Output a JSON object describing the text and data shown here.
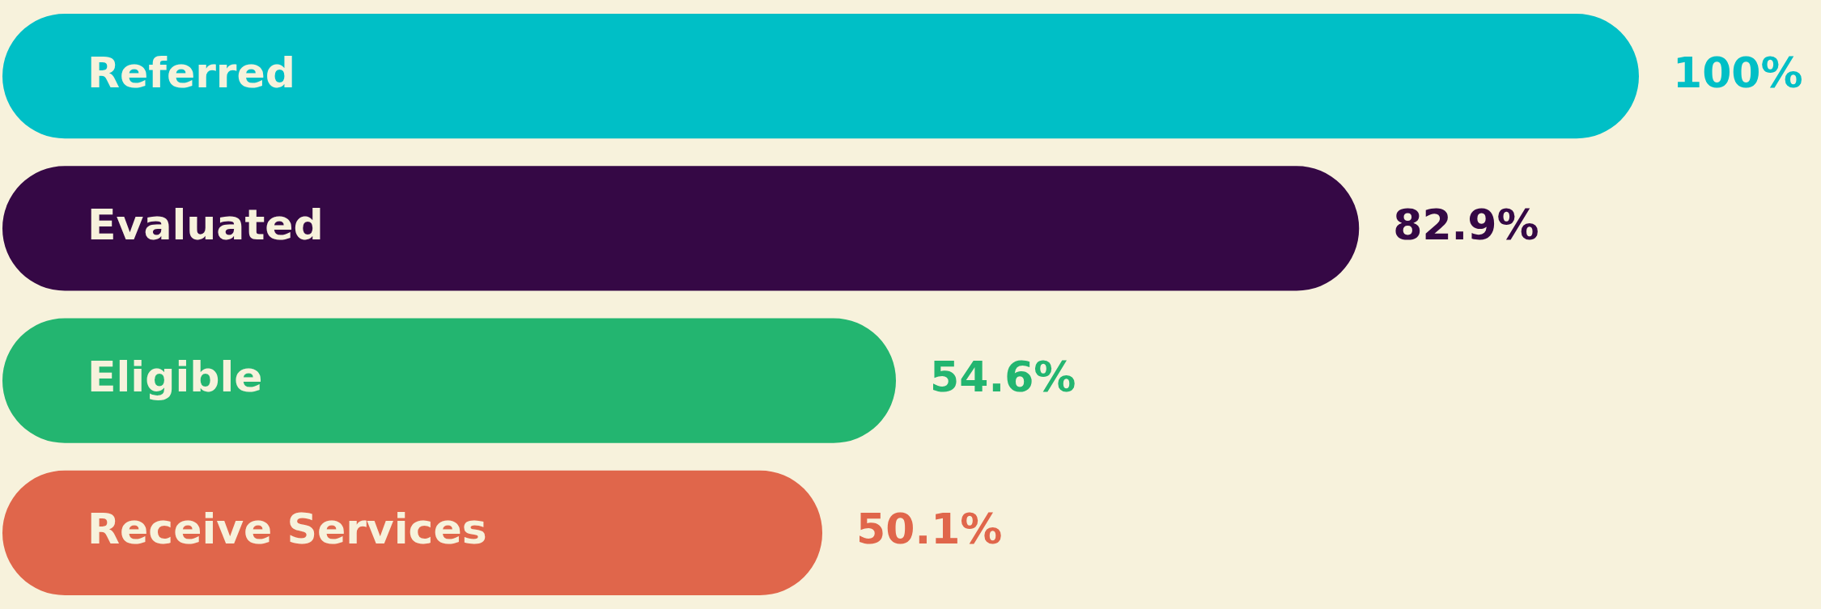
{
  "chart_data": {
    "type": "bar",
    "orientation": "horizontal",
    "categories": [
      "Referred",
      "Evaluated",
      "Eligible",
      "Receive Services"
    ],
    "values": [
      100,
      82.9,
      54.6,
      50.1
    ],
    "colors": [
      "#00bfc6",
      "#350845",
      "#23b570",
      "#e0664b"
    ],
    "value_labels": [
      "100%",
      "82.9%",
      "54.6%",
      "50.1%"
    ]
  }
}
